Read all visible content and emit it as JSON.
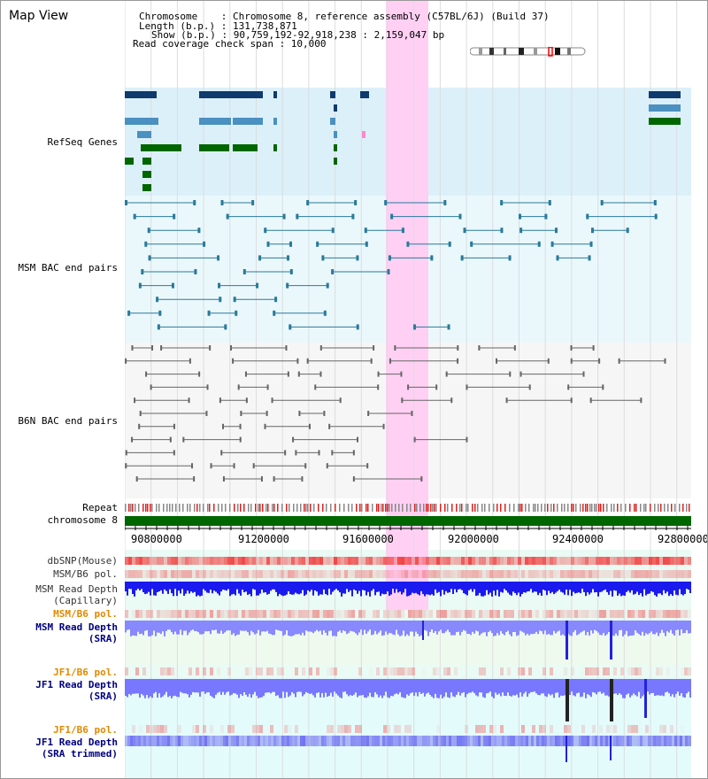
{
  "header": {
    "title": "Map View",
    "info_lines": [
      "Chromosome    : Chromosome 8, reference assembly (C57BL/6J) (Build 37)",
      "Length (b.p.) : 131,738,871",
      "Show (b.p.) : 90,759,192-92,918,238 : 2,159,047 bp",
      "Read coverage check span : 10,000"
    ]
  },
  "tracks": {
    "refseq_label": "RefSeq Genes",
    "msm_bac_label": "MSM BAC end pairs",
    "b6n_bac_label": "B6N BAC end pairs",
    "repeat_label": "Repeat",
    "chromosome_label": "chromosome 8",
    "dbsnp_label": "dbSNP(Mouse)",
    "msm_b6_pol_label_1": "MSM/B6 pol.",
    "msm_read_depth_cap_label": "MSM Read Depth",
    "msm_read_depth_cap_sub": "(Capillary)",
    "msm_b6_pol_label_2": "MSM/B6 pol.",
    "msm_read_depth_sra_label": "MSM Read Depth",
    "msm_read_depth_sra_sub": "(SRA)",
    "jf1_b6_pol_label_1": "JF1/B6 pol.",
    "jf1_read_depth_sra_label": "JF1 Read Depth",
    "jf1_read_depth_sra_sub": "(SRA)",
    "jf1_b6_pol_label_2": "JF1/B6 pol.",
    "jf1_read_depth_trim_label": "JF1 Read Depth",
    "jf1_read_depth_trim_sub": "(SRA trimmed)"
  },
  "axis": {
    "ticks": [
      "90800000",
      "91200000",
      "91600000",
      "92000000",
      "92400000",
      "92800000"
    ]
  },
  "colors": {
    "refseq_bg": "#dcf0fa",
    "msm_bac_bg": "#eaf8fc",
    "b6n_bac_bg": "#f6f6f6",
    "highlight": "#ffd0f4",
    "gene_dark": "#0e3a6e",
    "gene_mid": "#4a90c0",
    "gene_green": "#006600",
    "msm_bac": "#2a7a9a",
    "b6n_bac": "#666666",
    "chromosome": "#006600",
    "label_navy": "#000080",
    "label_teal": "#1a6a7a",
    "label_gray": "#555555",
    "label_orange": "#e08a00",
    "depth_blue": "#1a1aee",
    "depth_sra": "#6666ff"
  }
}
